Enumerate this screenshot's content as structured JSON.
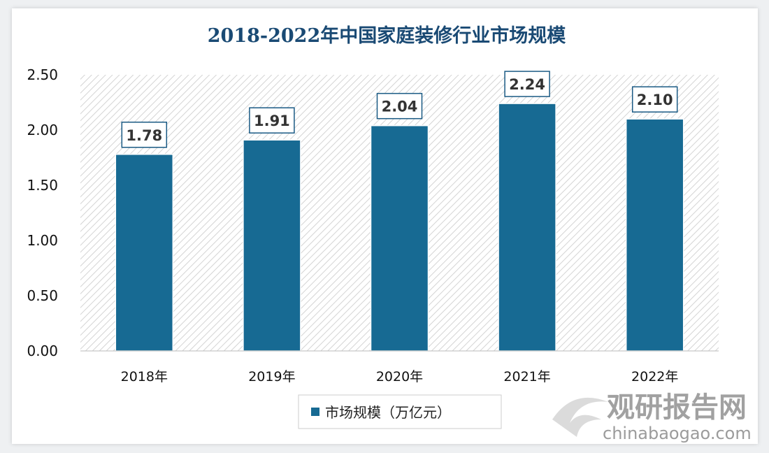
{
  "chart_data": {
    "type": "bar",
    "title": "2018-2022年中国家庭装修行业市场规模",
    "categories": [
      "2018年",
      "2019年",
      "2020年",
      "2021年",
      "2022年"
    ],
    "series": [
      {
        "name": "市场规模（万亿元）",
        "values": [
          1.78,
          1.91,
          2.04,
          2.24,
          2.1
        ]
      }
    ],
    "data_labels": [
      "1.78",
      "1.91",
      "2.04",
      "2.24",
      "2.10"
    ],
    "ylim": [
      0,
      2.5
    ],
    "yticks": [
      "0.00",
      "0.50",
      "1.00",
      "1.50",
      "2.00",
      "2.50"
    ],
    "grid": false,
    "legend": "bottom",
    "colors": {
      "bar": "#176a93",
      "title": "#1a4a74",
      "label_border": "#1a5a84"
    }
  },
  "watermark": {
    "name": "观研报告网",
    "url": "chinabaogao.com"
  }
}
